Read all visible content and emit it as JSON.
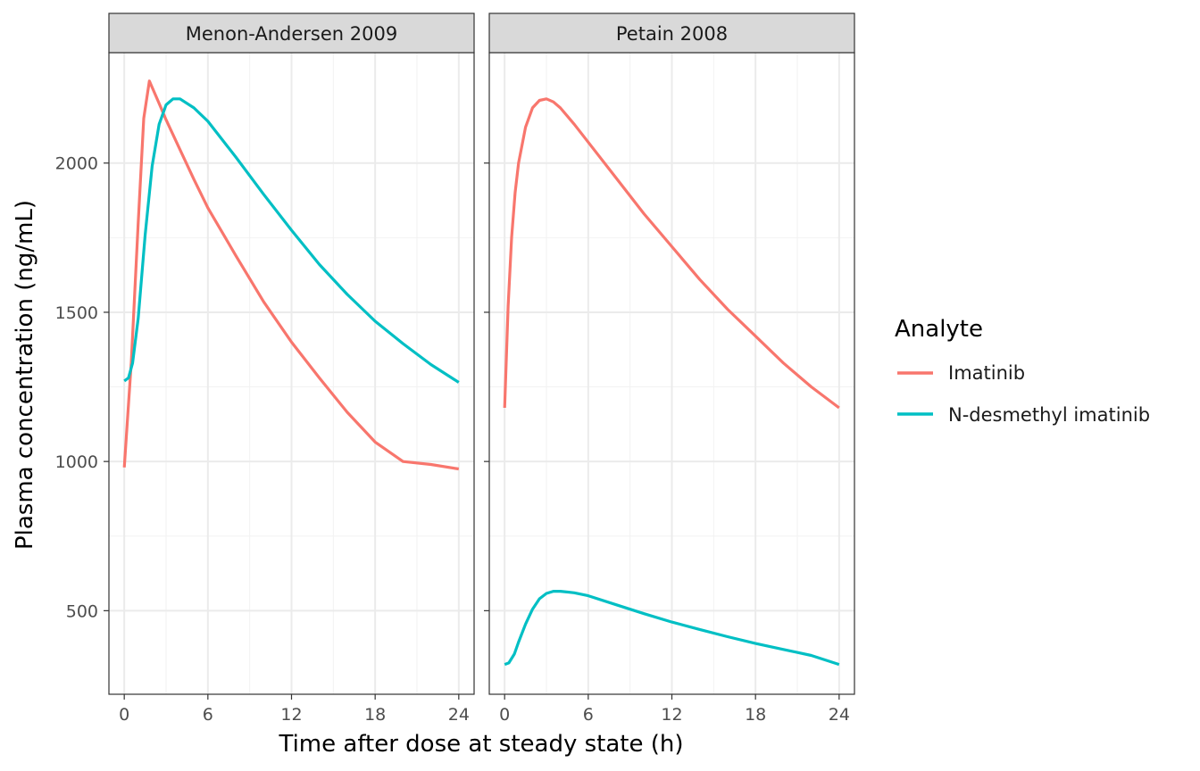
{
  "chart_data": {
    "type": "line",
    "xlabel": "Time after dose at steady state (h)",
    "ylabel": "Plasma concentration (ng/mL)",
    "xlim": [
      -1.1,
      25.1
    ],
    "ylim": [
      220,
      2370
    ],
    "x_ticks": [
      0,
      6,
      12,
      18,
      24
    ],
    "y_ticks": [
      500,
      1000,
      1500,
      2000
    ],
    "grid": true,
    "legend": {
      "title": "Analyte",
      "position": "right",
      "entries": [
        {
          "name": "Imatinib",
          "color": "#F8766D"
        },
        {
          "name": "N-desmethyl imatinib",
          "color": "#00BFC4"
        }
      ]
    },
    "panels": [
      {
        "title": "Menon-Andersen 2009",
        "series": [
          {
            "name": "Imatinib",
            "color": "#F8766D",
            "x": [
              0,
              0.5,
              1,
              1.4,
              1.8,
              2.5,
              3,
              4,
              5,
              6,
              8,
              10,
              12,
              14,
              16,
              18,
              20,
              22,
              24
            ],
            "y": [
              980,
              1330,
              1800,
              2150,
              2275,
              2200,
              2145,
              2045,
              1945,
              1850,
              1690,
              1535,
              1400,
              1280,
              1165,
              1065,
              1000,
              990,
              975
            ]
          },
          {
            "name": "N-desmethyl imatinib",
            "color": "#00BFC4",
            "x": [
              0,
              0.3,
              0.6,
              1,
              1.5,
              2,
              2.5,
              3,
              3.5,
              4,
              5,
              6,
              8,
              10,
              12,
              14,
              16,
              18,
              20,
              22,
              24
            ],
            "y": [
              1270,
              1280,
              1330,
              1480,
              1760,
              1990,
              2130,
              2195,
              2215,
              2215,
              2185,
              2140,
              2020,
              1895,
              1775,
              1660,
              1560,
              1470,
              1395,
              1325,
              1265
            ]
          }
        ]
      },
      {
        "title": "Petain 2008",
        "series": [
          {
            "name": "Imatinib",
            "color": "#F8766D",
            "x": [
              0,
              0.25,
              0.5,
              0.75,
              1,
              1.5,
              2,
              2.5,
              3,
              3.5,
              4,
              5,
              6,
              8,
              10,
              12,
              14,
              16,
              18,
              20,
              22,
              24
            ],
            "y": [
              1180,
              1520,
              1750,
              1900,
              2000,
              2120,
              2185,
              2210,
              2215,
              2205,
              2185,
              2130,
              2070,
              1950,
              1830,
              1720,
              1610,
              1510,
              1420,
              1330,
              1250,
              1180
            ]
          },
          {
            "name": "N-desmethyl imatinib",
            "color": "#00BFC4",
            "x": [
              0,
              0.3,
              0.7,
              1,
              1.5,
              2,
              2.5,
              3,
              3.5,
              4,
              5,
              6,
              8,
              10,
              12,
              14,
              16,
              18,
              20,
              22,
              24
            ],
            "y": [
              320,
              325,
              355,
              395,
              455,
              505,
              540,
              558,
              565,
              565,
              560,
              550,
              520,
              490,
              462,
              437,
              413,
              390,
              370,
              350,
              320
            ]
          }
        ]
      }
    ]
  }
}
